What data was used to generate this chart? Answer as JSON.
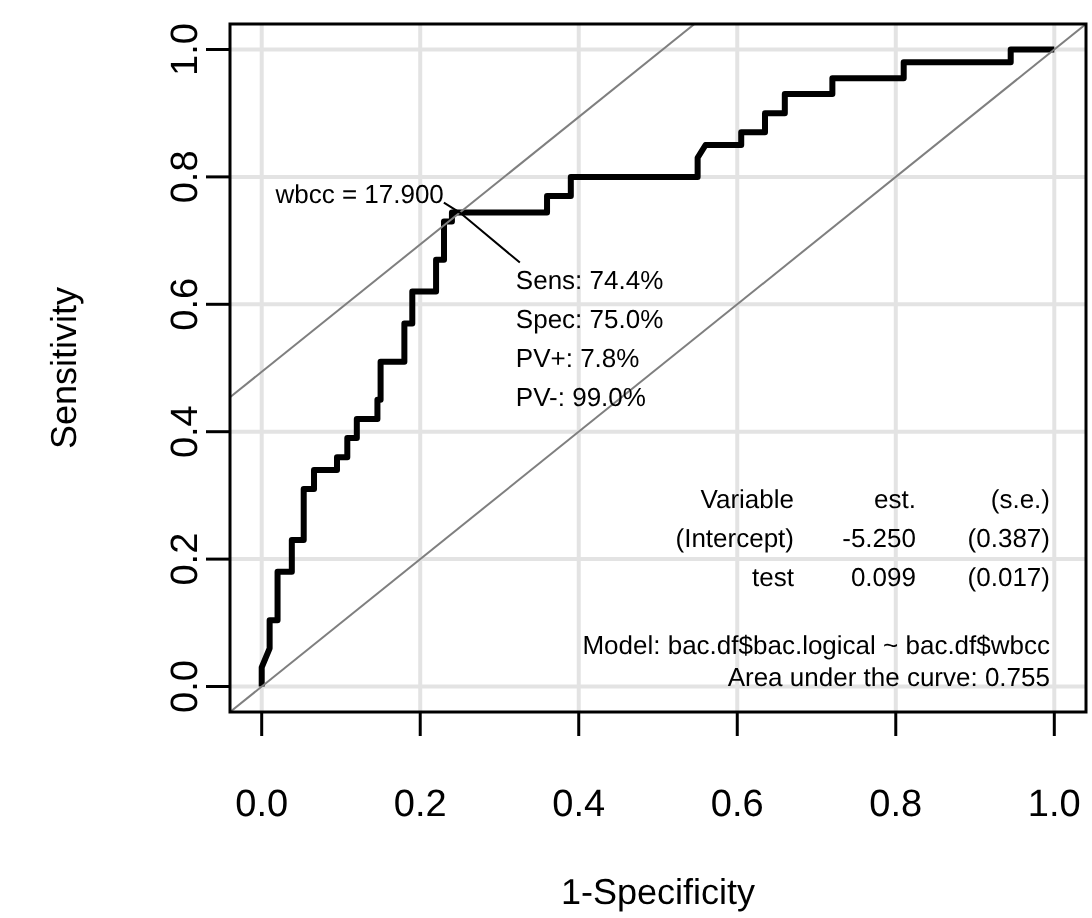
{
  "chart_data": {
    "type": "line",
    "xlabel": "1-Specificity",
    "ylabel": "Sensitivity",
    "xlim": [
      -0.04,
      1.04
    ],
    "ylim": [
      -0.04,
      1.04
    ],
    "xticks": [
      {
        "value": 0,
        "label": "0.0"
      },
      {
        "value": 0.2,
        "label": "0.2"
      },
      {
        "value": 0.4,
        "label": "0.4"
      },
      {
        "value": 0.6,
        "label": "0.6"
      },
      {
        "value": 0.8,
        "label": "0.8"
      },
      {
        "value": 1,
        "label": "1.0"
      }
    ],
    "yticks": [
      {
        "value": 0,
        "label": "0.0"
      },
      {
        "value": 0.2,
        "label": "0.2"
      },
      {
        "value": 0.4,
        "label": "0.4"
      },
      {
        "value": 0.6,
        "label": "0.6"
      },
      {
        "value": 0.8,
        "label": "0.8"
      },
      {
        "value": 1,
        "label": "1.0"
      }
    ],
    "grid": true,
    "marker": "none",
    "series": [
      {
        "color": "#000000",
        "x": [
          0,
          0,
          0.01,
          0.01,
          0.02,
          0.02,
          0.038,
          0.038,
          0.053,
          0.053,
          0.066,
          0.066,
          0.095,
          0.095,
          0.108,
          0.108,
          0.12,
          0.12,
          0.146,
          0.146,
          0.15,
          0.15,
          0.18,
          0.18,
          0.19,
          0.19,
          0.196,
          0.196,
          0.22,
          0.22,
          0.23,
          0.23,
          0.24,
          0.24,
          0.25,
          0.36,
          0.36,
          0.39,
          0.39,
          0.55,
          0.55,
          0.56,
          0.605,
          0.605,
          0.635,
          0.635,
          0.66,
          0.66,
          0.72,
          0.72,
          0.81,
          0.81,
          0.945,
          0.945,
          1.0
        ],
        "values": [
          0,
          0.03,
          0.06,
          0.104,
          0.104,
          0.18,
          0.18,
          0.23,
          0.23,
          0.31,
          0.31,
          0.34,
          0.34,
          0.36,
          0.36,
          0.39,
          0.39,
          0.42,
          0.42,
          0.45,
          0.45,
          0.51,
          0.51,
          0.57,
          0.57,
          0.62,
          0.62,
          0.62,
          0.62,
          0.67,
          0.67,
          0.73,
          0.73,
          0.744,
          0.744,
          0.744,
          0.77,
          0.77,
          0.8,
          0.8,
          0.83,
          0.85,
          0.85,
          0.87,
          0.87,
          0.9,
          0.9,
          0.93,
          0.93,
          0.955,
          0.955,
          0.98,
          0.98,
          1.0,
          1.0
        ]
      },
      {
        "color": "#7f7f7f",
        "x": [
          -0.04,
          1.04
        ],
        "values": [
          -0.04,
          1.04
        ]
      },
      {
        "color": "#7f7f7f",
        "x": [
          -0.04,
          0.546
        ],
        "values": [
          0.454,
          1.04
        ]
      }
    ],
    "annotations": [
      {
        "text": "wbcc = 17.900",
        "x": 0.25,
        "y": 0.744
      },
      "Sens: 74.4%",
      "Spec: 75.0%",
      "PV+: 7.8%",
      "PV-: 99.0%",
      "Variable",
      "est.",
      "(s.e.)",
      "(Intercept)",
      "-5.250",
      "(0.387)",
      "test",
      "0.099",
      "(0.017)",
      "Model:  bac.df$bac.logical ~ bac.df$wbcc",
      "Area under the curve: 0.755"
    ]
  }
}
